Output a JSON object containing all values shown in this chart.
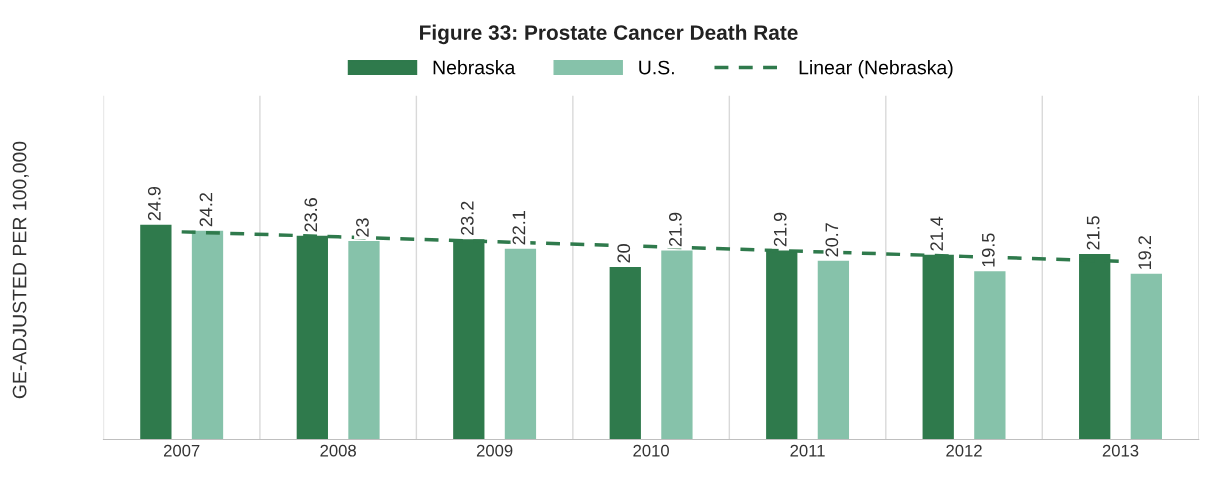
{
  "chart_data": {
    "type": "bar",
    "title": "Figure 33: Prostate Cancer Death Rate",
    "ylabel": "GE-ADJUSTED PER 100,000",
    "categories": [
      "2007",
      "2008",
      "2009",
      "2010",
      "2011",
      "2012",
      "2013"
    ],
    "series": [
      {
        "name": "Nebraska",
        "color": "#2f7a4c",
        "values": [
          24.9,
          23.6,
          23.2,
          20,
          21.9,
          21.4,
          21.5
        ],
        "value_labels": [
          "24.9",
          "23.6",
          "23.2",
          "20",
          "21.9",
          "21.4",
          "21.5"
        ]
      },
      {
        "name": "U.S.",
        "color": "#86c2aa",
        "values": [
          24.2,
          23,
          22.1,
          21.9,
          20.7,
          19.5,
          19.2
        ],
        "value_labels": [
          "24.2",
          "23",
          "22.1",
          "21.9",
          "20.7",
          "19.5",
          "19.2"
        ]
      },
      {
        "name": "Linear (Nebraska)",
        "type": "line",
        "color": "#2f7a4c",
        "line_style": "dashed",
        "values": [
          24.06,
          23.49,
          22.92,
          22.36,
          21.79,
          21.22,
          20.65
        ]
      }
    ],
    "grid": "x",
    "legend": "top"
  }
}
